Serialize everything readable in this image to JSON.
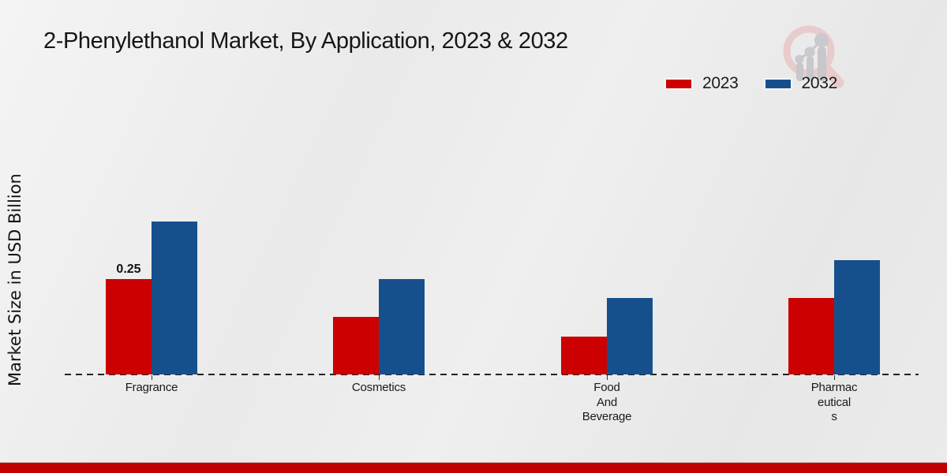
{
  "title": "2-Phenylethanol Market, By Application, 2023 & 2032",
  "ylabel": "Market Size in USD Billion",
  "legend": [
    {
      "label": "2023",
      "color": "#cc0000"
    },
    {
      "label": "2032",
      "color": "#16508c"
    }
  ],
  "colors": {
    "bar_red": "#cc0000",
    "bar_blue": "#16508c",
    "bottom_strip": "#c00000",
    "axis_line": "#222222"
  },
  "watermark_icon": "magnifier-growth-chart-logo",
  "chart_data": {
    "type": "bar",
    "title": "2-Phenylethanol Market, By Application, 2023 & 2032",
    "ylabel": "Market Size in USD Billion",
    "unit": "USD Billion",
    "categories": [
      "Fragrance",
      "Cosmetics",
      "Food And Beverage",
      "Pharmaceuticals"
    ],
    "category_display": [
      "Fragrance",
      "Cosmetics",
      "Food\nAnd\nBeverage",
      "Pharmac\neutical\ns"
    ],
    "series": [
      {
        "name": "2023",
        "color": "#cc0000",
        "values": [
          0.25,
          0.15,
          0.1,
          0.2
        ]
      },
      {
        "name": "2032",
        "color": "#16508c",
        "values": [
          0.4,
          0.25,
          0.2,
          0.3
        ]
      }
    ],
    "annotations": [
      {
        "series": "2023",
        "category": "Fragrance",
        "text": "0.25"
      }
    ],
    "ylim": [
      0,
      0.45
    ],
    "grid": false,
    "axis_style": "dashed-baseline-only",
    "legend_position": "top-right"
  }
}
